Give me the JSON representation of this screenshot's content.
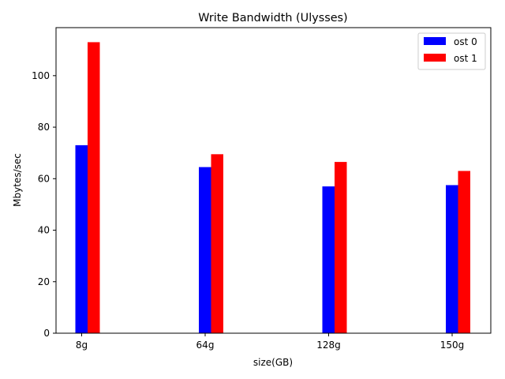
{
  "chart_data": {
    "type": "bar",
    "title": "Write Bandwidth (Ulysses)",
    "xlabel": "size(GB)",
    "ylabel": "Mbytes/sec",
    "categories": [
      "8g",
      "64g",
      "128g",
      "150g"
    ],
    "series": [
      {
        "name": "ost 0",
        "color": "#0000ff",
        "values": [
          73,
          64.5,
          57,
          57.5
        ]
      },
      {
        "name": "ost 1",
        "color": "#ff0000",
        "values": [
          113,
          69.5,
          66.5,
          63
        ]
      }
    ],
    "ylim": [
      0,
      118.65
    ],
    "yticks": [
      0,
      20,
      40,
      60,
      80,
      100
    ],
    "grid": false,
    "legend_position": "top-right"
  }
}
